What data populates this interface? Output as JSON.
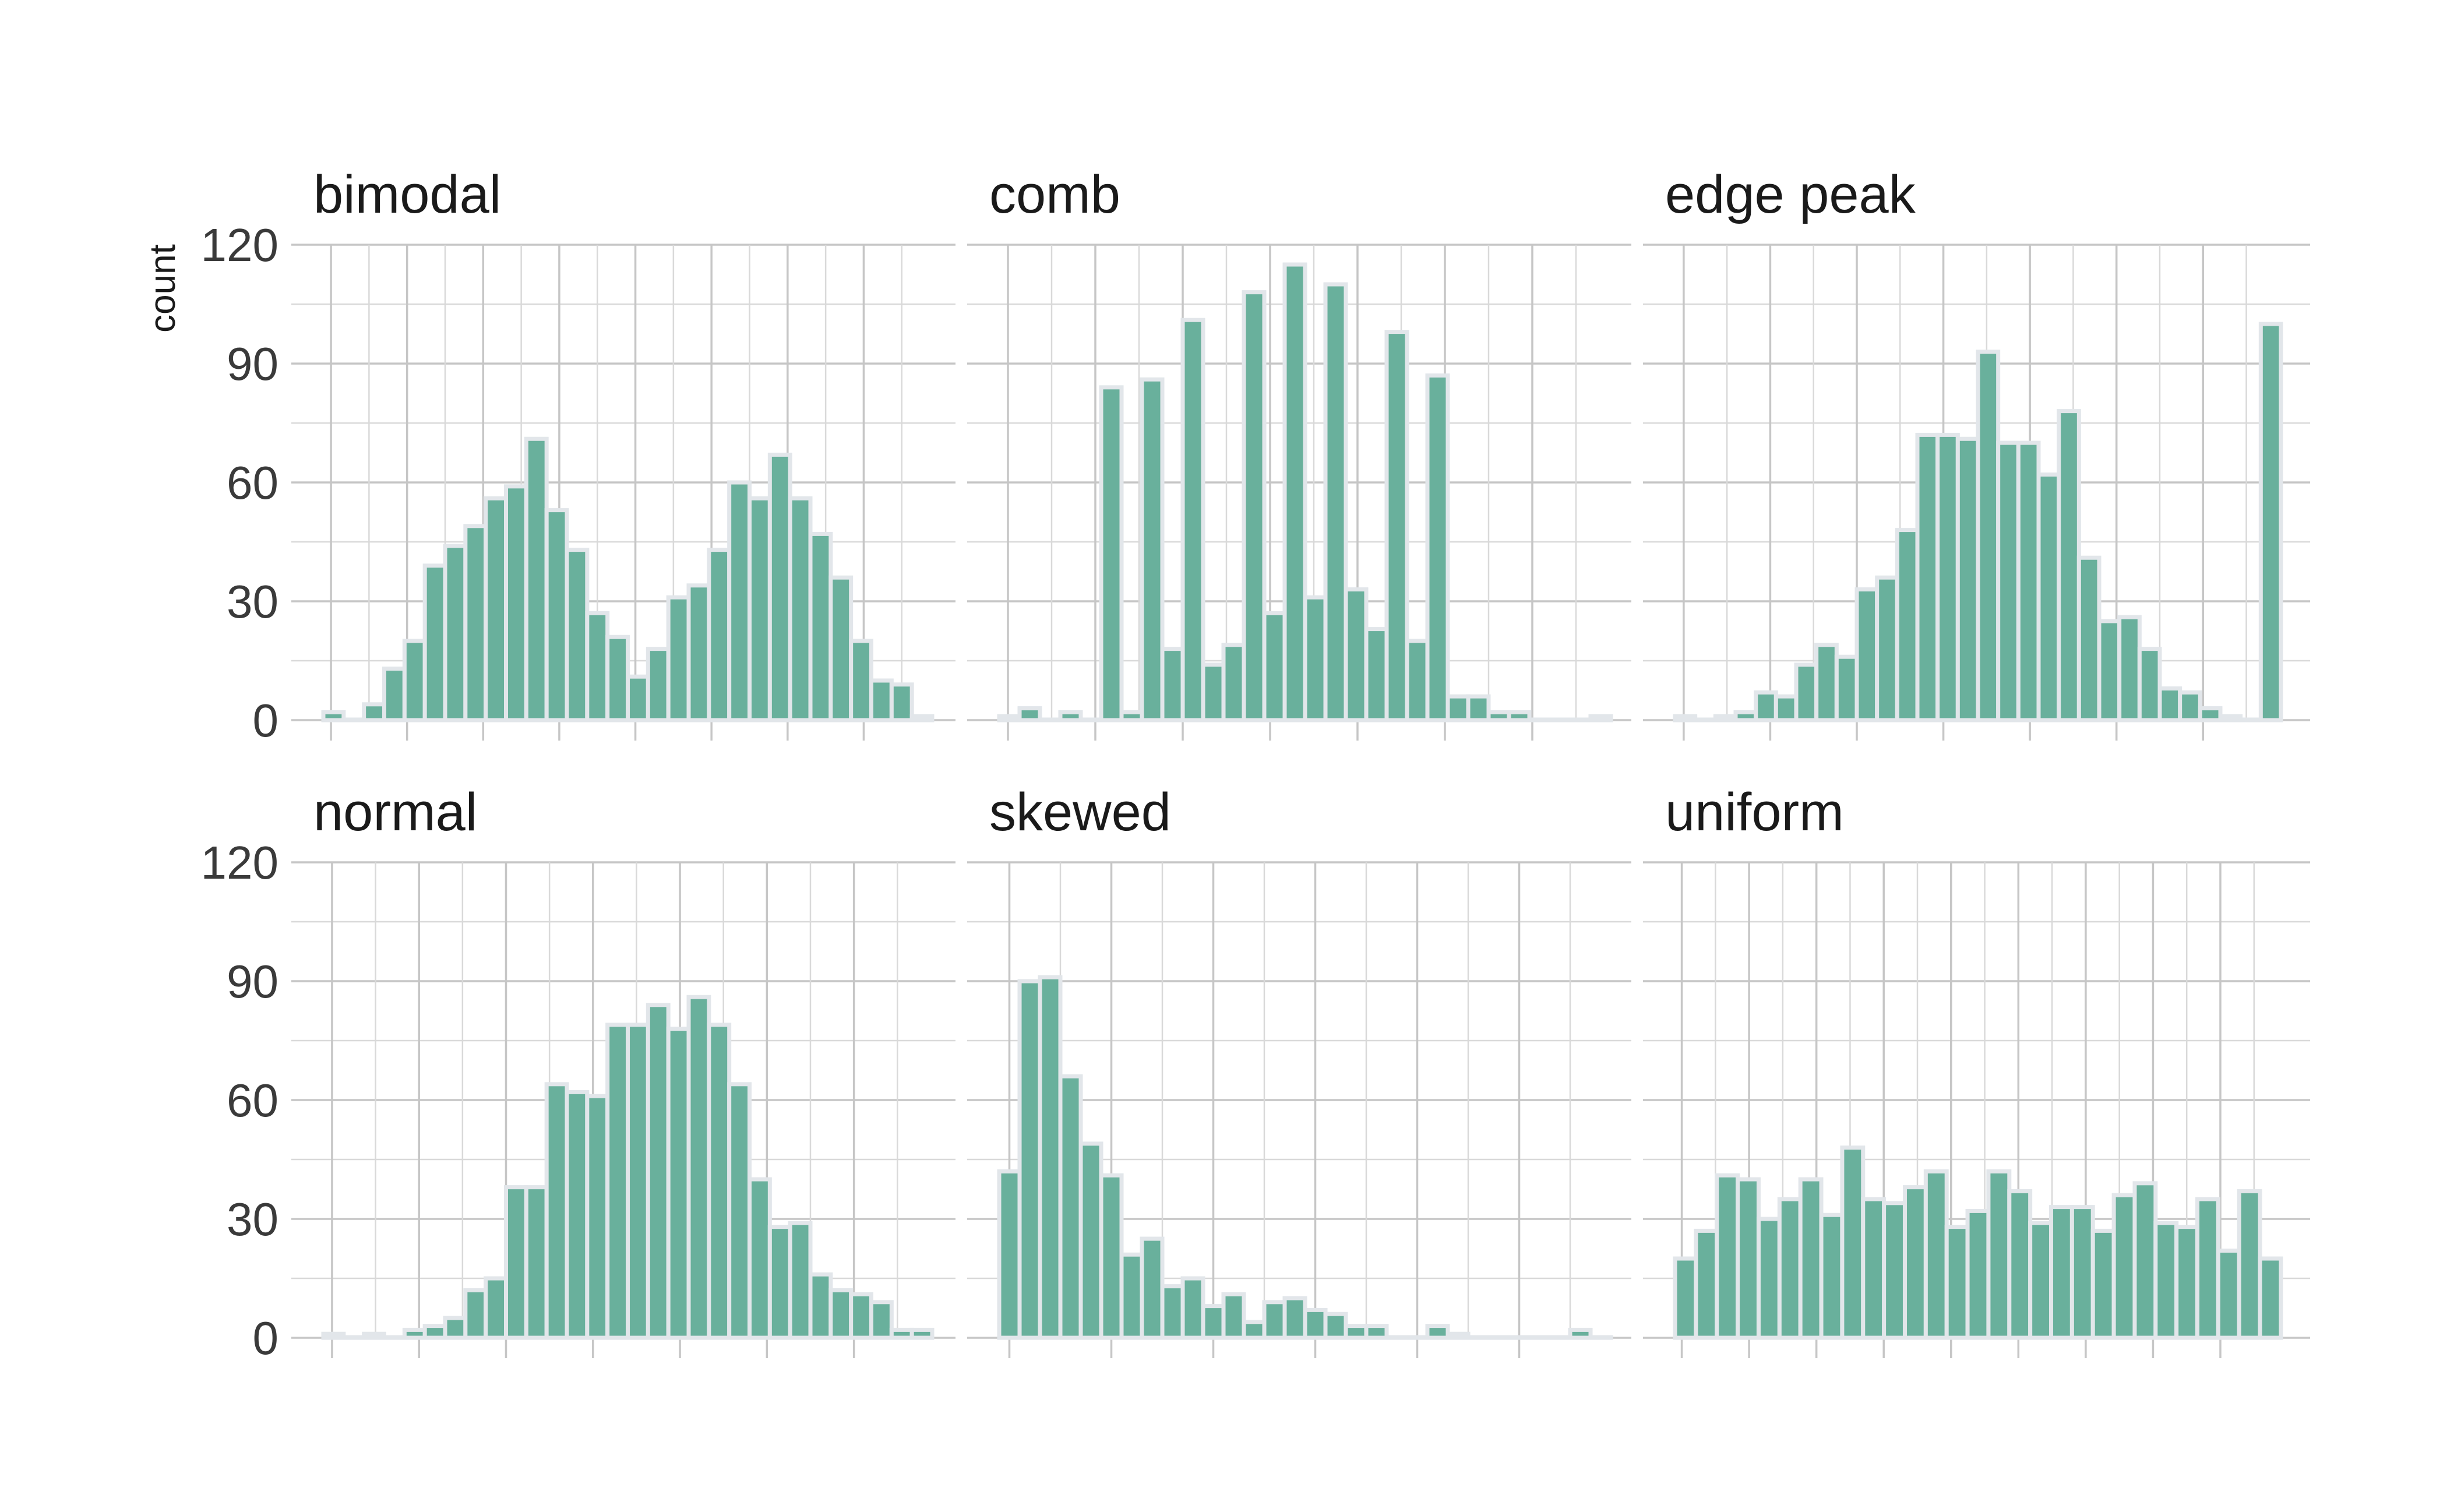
{
  "chart_data": {
    "type": "bar",
    "layout": "facet grid 2 rows x 3 columns, shared y axis",
    "ylabel": "count",
    "ylim": [
      0,
      120
    ],
    "yticks": [
      0,
      30,
      60,
      90,
      120
    ],
    "grid": true,
    "bar_fill": "#69b09c",
    "bar_outline": "#e2e6ea",
    "panels": [
      {
        "title": "bimodal",
        "values": [
          2,
          0,
          4,
          13,
          20,
          39,
          44,
          49,
          56,
          59,
          71,
          53,
          43,
          27,
          21,
          11,
          18,
          31,
          34,
          43,
          60,
          56,
          67,
          56,
          47,
          36,
          20,
          10,
          9,
          1
        ],
        "xbreaks": 8
      },
      {
        "title": "comb",
        "values": [
          1,
          3,
          0,
          2,
          0,
          84,
          2,
          86,
          18,
          101,
          14,
          19,
          108,
          27,
          115,
          31,
          110,
          33,
          23,
          98,
          20,
          87,
          6,
          6,
          2,
          2,
          0,
          0,
          0,
          1
        ],
        "xbreaks": 7
      },
      {
        "title": "edge peak",
        "values": [
          1,
          0,
          1,
          2,
          7,
          6,
          14,
          19,
          16,
          33,
          36,
          48,
          72,
          72,
          71,
          93,
          70,
          70,
          62,
          78,
          41,
          25,
          26,
          18,
          8,
          7,
          3,
          1,
          0,
          100
        ],
        "xbreaks": 7
      },
      {
        "title": "normal",
        "values": [
          1,
          0,
          1,
          0,
          2,
          3,
          5,
          12,
          15,
          38,
          38,
          64,
          62,
          61,
          79,
          79,
          84,
          78,
          86,
          79,
          64,
          40,
          28,
          29,
          16,
          12,
          11,
          9,
          2,
          2
        ],
        "xbreaks": 7
      },
      {
        "title": "skewed",
        "values": [
          42,
          90,
          91,
          66,
          49,
          41,
          21,
          25,
          13,
          15,
          8,
          11,
          4,
          9,
          10,
          7,
          6,
          3,
          3,
          0,
          0,
          3,
          1,
          0,
          0,
          0,
          0,
          0,
          2,
          0
        ],
        "xbreaks": 6
      },
      {
        "title": "uniform",
        "values": [
          20,
          27,
          41,
          40,
          30,
          35,
          40,
          31,
          48,
          35,
          34,
          38,
          42,
          28,
          32,
          42,
          37,
          29,
          33,
          33,
          27,
          36,
          39,
          29,
          28,
          35,
          22,
          37,
          20
        ],
        "xbreaks": 9
      }
    ]
  }
}
